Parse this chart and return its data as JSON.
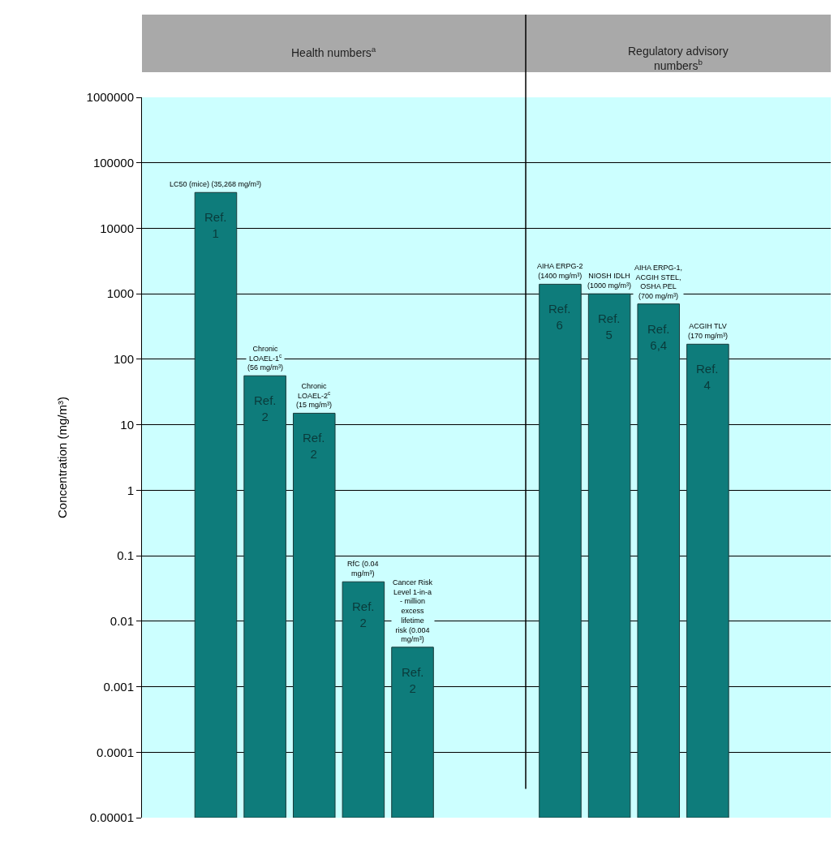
{
  "chart_data": {
    "type": "bar",
    "ylabel": "Concentration (mg/m³)",
    "log": "y",
    "categories": [
      null,
      null,
      null,
      null,
      null,
      null,
      null,
      null,
      null,
      null,
      null,
      null,
      null,
      null
    ],
    "values": [
      null,
      35268,
      56,
      15,
      0.04,
      0.004,
      null,
      null,
      1400,
      1000,
      700,
      170,
      null,
      null
    ],
    "value_labels": [
      null,
      "LC50 (mice) (35,268 mg/m³)",
      "Chronic LOAEL-1$^{c}$ (56 mg/m³)",
      "Chronic LOAEL-2$^{c}$ (15 mg/m³)",
      "RfC (0.04 mg/m³)",
      "Cancer Risk Level 1-in-a - million excess lifetime risk (0.004 mg/m³)",
      null,
      null,
      "AIHA ERPG-2 (1400 mg/m³)",
      "NIOSH IDLH (1000 mg/m³)",
      "AIHA ERPG-1, ACGIH STEL, OSHA PEL (700 mg/m³)",
      "ACGIH TLV (170 mg/m³)",
      null,
      null
    ],
    "annotations": [
      "Health numbers$^{a}$",
      "Regulatory advisory numbers$^{b}$",
      "Ref. 1",
      "Ref. 2",
      "Ref. 2",
      "Ref. 2",
      "Ref. 2",
      "Ref. 6",
      "Ref. 5",
      "Ref. 6,4",
      "Ref. 4"
    ],
    "color": "#0e7c7b",
    "ylim": [
      1e-05,
      1000000
    ],
    "yticks": [
      {
        "value": 1e-05,
        "label": "0.00001"
      },
      {
        "value": 0.0001,
        "label": "0.0001"
      },
      0.001,
      0.01,
      0.1,
      1,
      10,
      100,
      1000,
      10000,
      100000,
      1000000
    ],
    "grid": "y",
    "tick_labels": "y"
  }
}
